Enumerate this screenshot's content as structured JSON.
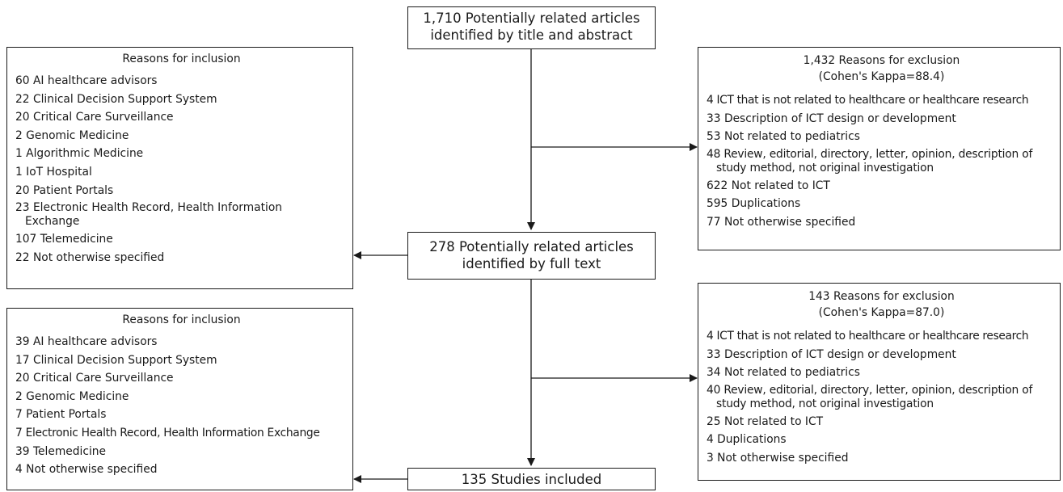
{
  "flow": {
    "step1": {
      "line1": "1,710 Potentially related articles",
      "line2": "identified by title and abstract"
    },
    "step2": {
      "line1": "278 Potentially related articles",
      "line2": "identified by full text"
    },
    "step3": {
      "line1": "135 Studies included"
    }
  },
  "inclusion1": {
    "title": "Reasons for inclusion",
    "items": [
      "60 AI healthcare advisors",
      "22 Clinical Decision Support System",
      "20 Critical Care Surveillance",
      "2 Genomic Medicine",
      "1 Algorithmic Medicine",
      "1 IoT Hospital",
      "20 Patient Portals",
      "23 Electronic Health Record, Health Information Exchange",
      "107 Telemedicine",
      "22 Not otherwise specified"
    ]
  },
  "inclusion2": {
    "title": "Reasons for inclusion",
    "items": [
      "39 AI healthcare advisors",
      "17 Clinical Decision Support System",
      "20 Critical Care Surveillance",
      "2 Genomic Medicine",
      "7 Patient Portals",
      "7 Electronic Health Record, Health Information Exchange",
      "39 Telemedicine",
      "4 Not otherwise specified"
    ]
  },
  "exclusion1": {
    "title": "1,432 Reasons for exclusion",
    "kappa": "(Cohen's Kappa=88.4)",
    "items": [
      "4 ICT that is not related to healthcare or healthcare research",
      "33 Description of ICT design or development",
      "53 Not related to pediatrics",
      "48 Review, editorial, directory, letter, opinion, description of study method, not original investigation",
      "622 Not related to ICT",
      "595 Duplications",
      "77 Not otherwise specified"
    ]
  },
  "exclusion2": {
    "title": "143 Reasons for exclusion",
    "kappa": "(Cohen's Kappa=87.0)",
    "items": [
      "4 ICT that is not related to healthcare or healthcare research",
      "33 Description of ICT design or development",
      "34 Not related to pediatrics",
      "40 Review, editorial, directory, letter, opinion, description of study method, not original investigation",
      "25 Not related to ICT",
      "4 Duplications",
      "3 Not otherwise specified"
    ]
  }
}
